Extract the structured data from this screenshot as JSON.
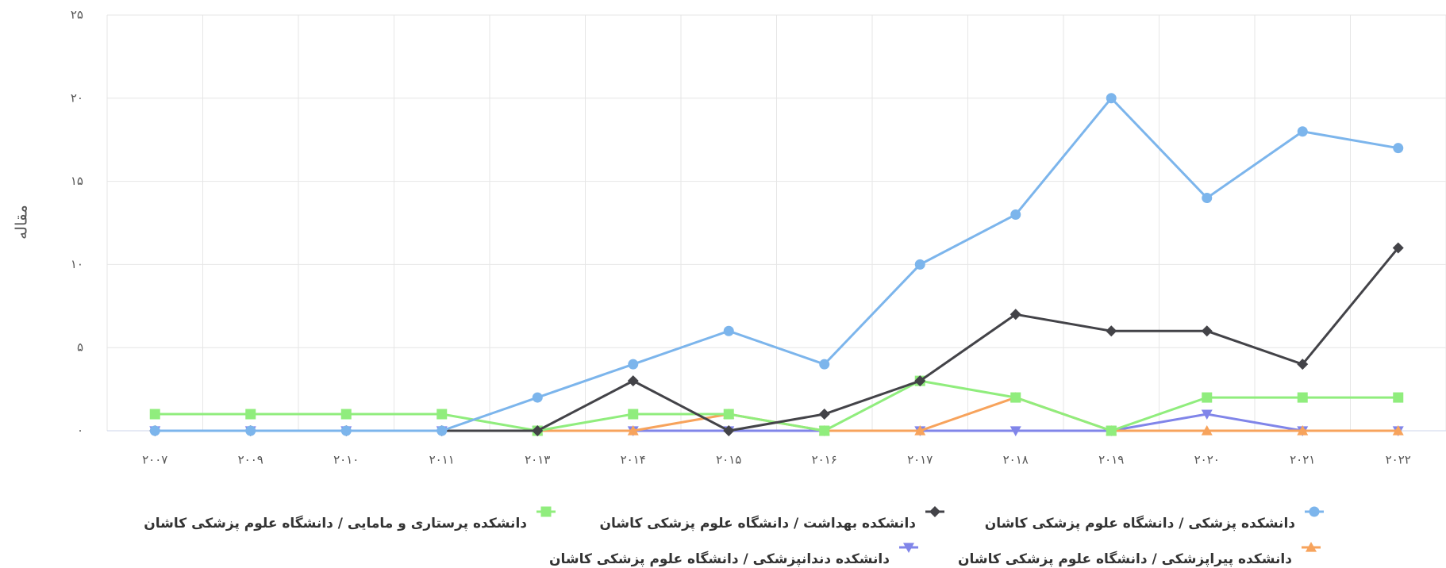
{
  "chart_data": {
    "type": "line",
    "y_label": "مقاله",
    "categories": [
      "۲۰۰۷",
      "۲۰۰۹",
      "۲۰۱۰",
      "۲۰۱۱",
      "۲۰۱۳",
      "۲۰۱۴",
      "۲۰۱۵",
      "۲۰۱۶",
      "۲۰۱۷",
      "۲۰۱۸",
      "۲۰۱۹",
      "۲۰۲۰",
      "۲۰۲۱",
      "۲۰۲۲"
    ],
    "ylim": [
      0,
      25
    ],
    "yticks": [
      {
        "value": 0,
        "label": "۰"
      },
      {
        "value": 5,
        "label": "۵"
      },
      {
        "value": 10,
        "label": "۱۰"
      },
      {
        "value": 15,
        "label": "۱۵"
      },
      {
        "value": 20,
        "label": "۲۰"
      },
      {
        "value": 25,
        "label": "۲۵"
      }
    ],
    "grid": true,
    "series": [
      {
        "name": "دانشکده پزشکی / دانشگاه علوم پزشکی کاشان",
        "color": "#7cb5ec",
        "marker": "circle",
        "values": [
          0,
          0,
          0,
          0,
          2,
          4,
          6,
          4,
          10,
          13,
          20,
          14,
          18,
          17
        ]
      },
      {
        "name": "دانشکده بهداشت / دانشگاه علوم پزشکی کاشان",
        "color": "#434348",
        "marker": "diamond",
        "values": [
          0,
          0,
          0,
          0,
          0,
          3,
          0,
          1,
          3,
          7,
          6,
          6,
          4,
          11
        ]
      },
      {
        "name": "دانشکده پرستاری و مامایی / دانشگاه علوم پزشکی کاشان",
        "color": "#90ed7d",
        "marker": "square",
        "values": [
          1,
          1,
          1,
          1,
          0,
          1,
          1,
          0,
          3,
          2,
          0,
          2,
          2,
          2
        ]
      },
      {
        "name": "دانشکده پیراپزشکی / دانشگاه علوم پزشکی کاشان",
        "color": "#f7a35c",
        "marker": "triangle",
        "values": [
          null,
          null,
          null,
          null,
          0,
          0,
          1,
          0,
          0,
          2,
          0,
          0,
          0,
          0
        ]
      },
      {
        "name": "دانشکده دندانپزشکی / دانشگاه علوم پزشکی کاشان",
        "color": "#8085e9",
        "marker": "triangle-down",
        "values": [
          0,
          0,
          0,
          0,
          0,
          0,
          0,
          0,
          0,
          0,
          0,
          1,
          0,
          0
        ]
      }
    ]
  }
}
